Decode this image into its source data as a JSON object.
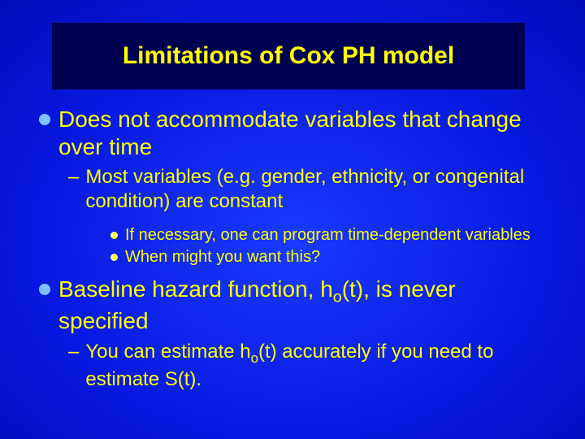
{
  "colors": {
    "title_box_bg": "#000050",
    "title_text": "#ffff00",
    "body_text": "#ffff00",
    "l1_marker": "#80c0ff",
    "l3_marker": "#ffff66",
    "bg_center": "#1a3aff",
    "bg_edge": "#000070"
  },
  "fontsize": {
    "title": 30,
    "l1": 28,
    "l2": 24,
    "l3": 20
  },
  "title": "Limitations of Cox PH model",
  "b1": "Does not accommodate variables that change over time",
  "b1a": "Most variables (e.g. gender, ethnicity, or congenital condition) are constant",
  "b1a1": "If necessary, one can program time-dependent variables",
  "b1a2": "When might you want this?",
  "b2_pre": "Baseline hazard function, h",
  "b2_sub": "o",
  "b2_post": "(t), is never specified",
  "b2a_pre": "You can estimate h",
  "b2a_sub": "o",
  "b2a_post": "(t) accurately if you need to estimate S(t)."
}
